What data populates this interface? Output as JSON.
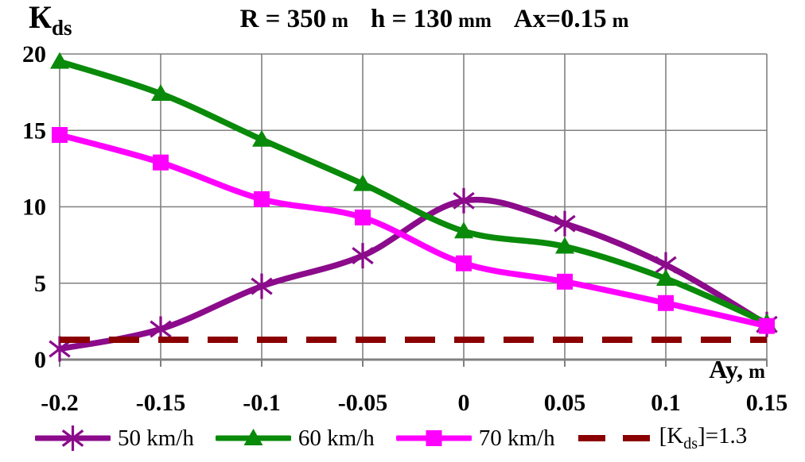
{
  "y_axis_title": {
    "main": "К",
    "sub": "ds"
  },
  "title": {
    "r_value": "R = 350",
    "r_unit": "m",
    "h_value": "h = 130",
    "h_unit": "mm",
    "ax_value": "Ax=0.15",
    "ax_unit": "m"
  },
  "x_axis_title": {
    "main": "Ay,",
    "unit": "m"
  },
  "legend": {
    "items": [
      {
        "label": "50 km/h"
      },
      {
        "label": "60 km/h"
      },
      {
        "label": "70 km/h"
      },
      {
        "kds_pre": "[K",
        "kds_sub": "ds",
        "kds_post": "]=1.3"
      }
    ]
  },
  "chart_data": {
    "type": "line",
    "title": "R = 350 m  h = 130 mm  Ax=0.15 m",
    "xlabel": "Ay, m",
    "ylabel": "Kds",
    "x": [
      -0.2,
      -0.15,
      -0.1,
      -0.05,
      0,
      0.05,
      0.1,
      0.15
    ],
    "x_tick_labels": [
      "-0.2",
      "-0.15",
      "-0.1",
      "-0.05",
      "0",
      "0.05",
      "0.1",
      "0.15"
    ],
    "y_ticks": [
      0,
      5,
      10,
      15,
      20
    ],
    "xlim": [
      -0.2,
      0.15
    ],
    "ylim": [
      0,
      20
    ],
    "grid": true,
    "legend_position": "bottom",
    "series": [
      {
        "name": "50 km/h",
        "color": "#8B0B8B",
        "marker": "asterisk",
        "line": "solid",
        "values": [
          0.7,
          2.0,
          4.8,
          6.8,
          10.4,
          8.9,
          6.2,
          2.3
        ]
      },
      {
        "name": "60 km/h",
        "color": "#0A8A0A",
        "marker": "triangle",
        "line": "solid",
        "values": [
          19.5,
          17.4,
          14.4,
          11.5,
          8.4,
          7.4,
          5.3,
          2.4
        ]
      },
      {
        "name": "70 km/h",
        "color": "#FF00FF",
        "marker": "square",
        "line": "solid",
        "values": [
          14.7,
          12.9,
          10.5,
          9.3,
          6.3,
          5.1,
          3.7,
          2.2
        ]
      },
      {
        "name": "[Kds]=1.3",
        "color": "#8B0000",
        "marker": "none",
        "line": "dashed",
        "constant": 1.3
      }
    ],
    "colors": {
      "grid": "#808080",
      "axis": "#808080",
      "text": "#000000",
      "background": "#FFFFFF"
    }
  }
}
